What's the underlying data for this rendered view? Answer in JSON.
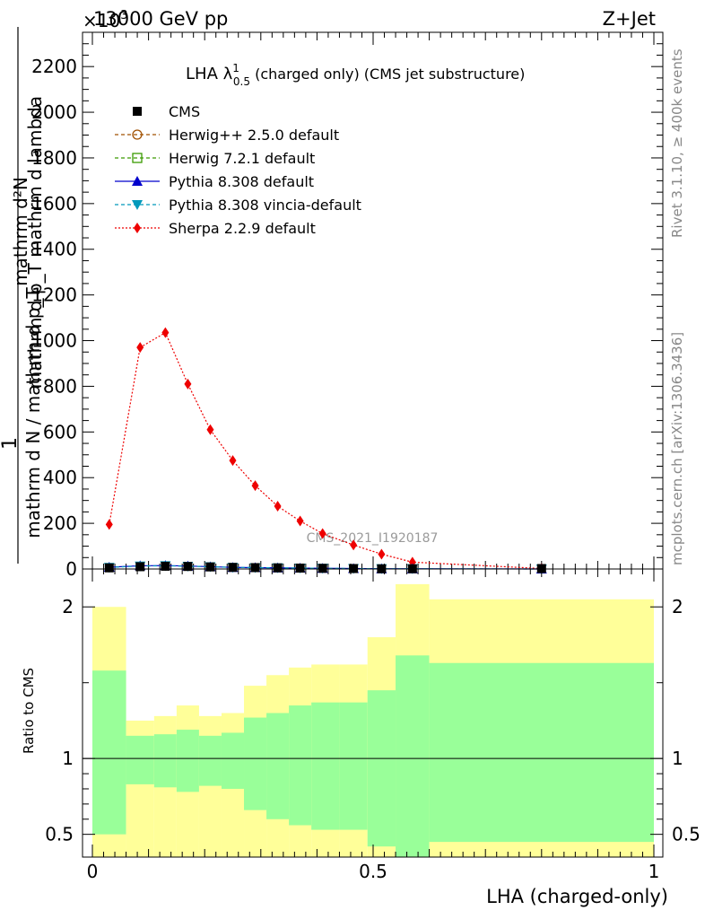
{
  "header": {
    "energy_label": "13000 GeV pp",
    "process_label": "Z+Jet",
    "exponent_label": "×10",
    "exponent_power": "3"
  },
  "side_labels": {
    "right_top": "Rivet 3.1.10, ≥ 400k events",
    "right_bottom": "mcplots.cern.ch [arXiv:1306.3436]"
  },
  "watermark": "CMS_2021_I1920187",
  "title": {
    "main": "LHA λ",
    "sup": "1",
    "sub": "0.5",
    "rest": " (charged only) (CMS jet substructure)"
  },
  "y_label": {
    "one": "1",
    "numerator": "mathrm d²N",
    "num_tail": "mathrm d p_T mathrm d lambda",
    "denominator": "mathrm d N / mathrm d p_T"
  },
  "ratio_ylabel": "Ratio to CMS",
  "x_label": "LHA (charged-only)",
  "legend": [
    {
      "label": "CMS",
      "color": "#000000",
      "marker": "square-filled"
    },
    {
      "label": "Herwig++ 2.5.0 default",
      "color": "#a05000",
      "marker": "circle-open"
    },
    {
      "label": "Herwig 7.2.1 default",
      "color": "#3a9a00",
      "marker": "square-open"
    },
    {
      "label": "Pythia 8.308 default",
      "color": "#0000cc",
      "marker": "triangle-up"
    },
    {
      "label": "Pythia 8.308 vincia-default",
      "color": "#0099bb",
      "marker": "triangle-down"
    },
    {
      "label": "Sherpa 2.2.9 default",
      "color": "#ee0000",
      "marker": "diamond"
    }
  ],
  "chart_data": {
    "type": "line",
    "main_panel": {
      "x_range": [
        0,
        1
      ],
      "y_range": [
        0,
        2350
      ],
      "y_ticks": [
        0,
        200,
        400,
        600,
        800,
        1000,
        1200,
        1400,
        1600,
        1800,
        2000,
        2200
      ],
      "y_tick_labels": [
        "0",
        "200",
        "400",
        "600",
        "800",
        "1000",
        "1200",
        "1400",
        "1600",
        "1800",
        "2000",
        "2200"
      ],
      "series": [
        {
          "name": "Sherpa 2.2.9 default",
          "x": [
            0.03,
            0.085,
            0.13,
            0.17,
            0.21,
            0.25,
            0.29,
            0.33,
            0.37,
            0.41,
            0.465,
            0.515,
            0.57,
            0.8
          ],
          "y": [
            195,
            970,
            1035,
            810,
            610,
            475,
            365,
            275,
            210,
            155,
            105,
            65,
            30,
            2
          ]
        },
        {
          "name": "Pythia 8.308 default",
          "x": [
            0.03,
            0.085,
            0.13,
            0.17,
            0.21,
            0.25,
            0.29,
            0.33,
            0.37,
            0.41,
            0.465,
            0.515,
            0.57,
            0.8
          ],
          "y": [
            8,
            14,
            15,
            13,
            10,
            7,
            6,
            5,
            4,
            3,
            2,
            1,
            1,
            0
          ]
        },
        {
          "name": "Pythia 8.308 vincia-default",
          "x": [
            0.03,
            0.085,
            0.13,
            0.17,
            0.21,
            0.25,
            0.29,
            0.33,
            0.37,
            0.41,
            0.465,
            0.515,
            0.57,
            0.8
          ],
          "y": [
            7,
            13,
            14,
            12,
            10,
            7,
            6,
            5,
            4,
            3,
            2,
            1,
            1,
            0
          ]
        },
        {
          "name": "CMS",
          "x": [
            0.03,
            0.085,
            0.13,
            0.17,
            0.21,
            0.25,
            0.29,
            0.33,
            0.37,
            0.41,
            0.465,
            0.515,
            0.57,
            0.8
          ],
          "y": [
            5,
            10,
            12,
            11,
            9,
            7,
            6,
            5,
            4,
            3,
            2,
            1,
            1,
            2
          ]
        }
      ]
    },
    "ratio_panel": {
      "y_range": [
        0.35,
        2.25
      ],
      "y_ticks": [
        0.5,
        1,
        2
      ],
      "y_tick_labels": [
        "0.5",
        "1",
        "2"
      ],
      "x_ticks": [
        0,
        0.5,
        1
      ],
      "x_tick_labels": [
        "0",
        "0.5",
        "1"
      ],
      "bins": [
        {
          "x0": 0.0,
          "x1": 0.06,
          "yellow": [
            0.35,
            2.0
          ],
          "green": [
            0.5,
            1.58
          ]
        },
        {
          "x0": 0.06,
          "x1": 0.11,
          "yellow": [
            0.35,
            1.25
          ],
          "green": [
            0.83,
            1.15
          ]
        },
        {
          "x0": 0.11,
          "x1": 0.15,
          "yellow": [
            0.35,
            1.28
          ],
          "green": [
            0.81,
            1.16
          ]
        },
        {
          "x0": 0.15,
          "x1": 0.19,
          "yellow": [
            0.35,
            1.35
          ],
          "green": [
            0.78,
            1.19
          ]
        },
        {
          "x0": 0.19,
          "x1": 0.23,
          "yellow": [
            0.35,
            1.28
          ],
          "green": [
            0.82,
            1.15
          ]
        },
        {
          "x0": 0.23,
          "x1": 0.27,
          "yellow": [
            0.35,
            1.3
          ],
          "green": [
            0.8,
            1.17
          ]
        },
        {
          "x0": 0.27,
          "x1": 0.31,
          "yellow": [
            0.35,
            1.48
          ],
          "green": [
            0.66,
            1.27
          ]
        },
        {
          "x0": 0.31,
          "x1": 0.35,
          "yellow": [
            0.35,
            1.55
          ],
          "green": [
            0.6,
            1.3
          ]
        },
        {
          "x0": 0.35,
          "x1": 0.39,
          "yellow": [
            0.35,
            1.6
          ],
          "green": [
            0.56,
            1.35
          ]
        },
        {
          "x0": 0.39,
          "x1": 0.44,
          "yellow": [
            0.35,
            1.62
          ],
          "green": [
            0.53,
            1.37
          ]
        },
        {
          "x0": 0.44,
          "x1": 0.49,
          "yellow": [
            0.35,
            1.62
          ],
          "green": [
            0.53,
            1.37
          ]
        },
        {
          "x0": 0.49,
          "x1": 0.54,
          "yellow": [
            0.35,
            1.8
          ],
          "green": [
            0.42,
            1.45
          ]
        },
        {
          "x0": 0.54,
          "x1": 0.6,
          "yellow": [
            0.35,
            2.15
          ],
          "green": [
            0.35,
            1.68
          ]
        },
        {
          "x0": 0.6,
          "x1": 1.0,
          "yellow": [
            0.35,
            2.05
          ],
          "green": [
            0.45,
            1.63
          ]
        }
      ],
      "reference_line": 1
    }
  }
}
